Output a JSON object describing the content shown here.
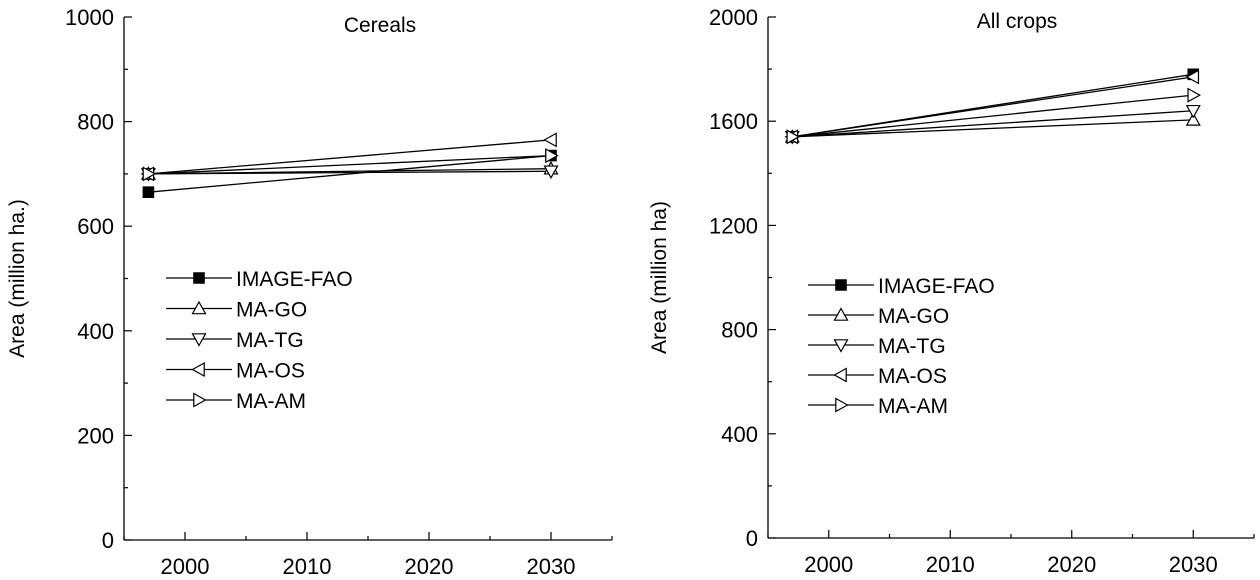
{
  "chart_data": [
    {
      "type": "line",
      "title": "Cereals",
      "ylabel": "Area (million ha.)",
      "xlabel": "",
      "xlim": [
        1995,
        2035
      ],
      "ylim": [
        0,
        1000
      ],
      "xticks": [
        2000,
        2010,
        2020,
        2030
      ],
      "yticks": [
        0,
        200,
        400,
        600,
        800,
        1000
      ],
      "legend_position": "center-left",
      "series": [
        {
          "name": "IMAGE-FAO",
          "marker": "square-filled",
          "x": [
            1997,
            2030
          ],
          "values": [
            665,
            735
          ]
        },
        {
          "name": "MA-GO",
          "marker": "triangle-up",
          "x": [
            1997,
            2030
          ],
          "values": [
            700,
            710
          ]
        },
        {
          "name": "MA-TG",
          "marker": "triangle-down",
          "x": [
            1997,
            2030
          ],
          "values": [
            700,
            705
          ]
        },
        {
          "name": "MA-OS",
          "marker": "triangle-left",
          "x": [
            1997,
            2030
          ],
          "values": [
            700,
            765
          ]
        },
        {
          "name": "MA-AM",
          "marker": "triangle-right",
          "x": [
            1997,
            2030
          ],
          "values": [
            700,
            735
          ]
        }
      ]
    },
    {
      "type": "line",
      "title": "All crops",
      "ylabel": "Area (million ha)",
      "xlabel": "",
      "xlim": [
        1995,
        2035
      ],
      "ylim": [
        0,
        2000
      ],
      "xticks": [
        2000,
        2010,
        2020,
        2030
      ],
      "yticks": [
        0,
        400,
        800,
        1200,
        1600,
        2000
      ],
      "legend_position": "center-left",
      "series": [
        {
          "name": "IMAGE-FAO",
          "marker": "square-filled",
          "x": [
            1997,
            2030
          ],
          "values": [
            1540,
            1780
          ]
        },
        {
          "name": "MA-GO",
          "marker": "triangle-up",
          "x": [
            1997,
            2030
          ],
          "values": [
            1540,
            1605
          ]
        },
        {
          "name": "MA-TG",
          "marker": "triangle-down",
          "x": [
            1997,
            2030
          ],
          "values": [
            1540,
            1640
          ]
        },
        {
          "name": "MA-OS",
          "marker": "triangle-left",
          "x": [
            1997,
            2030
          ],
          "values": [
            1540,
            1770
          ]
        },
        {
          "name": "MA-AM",
          "marker": "triangle-right",
          "x": [
            1997,
            2030
          ],
          "values": [
            1540,
            1700
          ]
        }
      ]
    }
  ]
}
